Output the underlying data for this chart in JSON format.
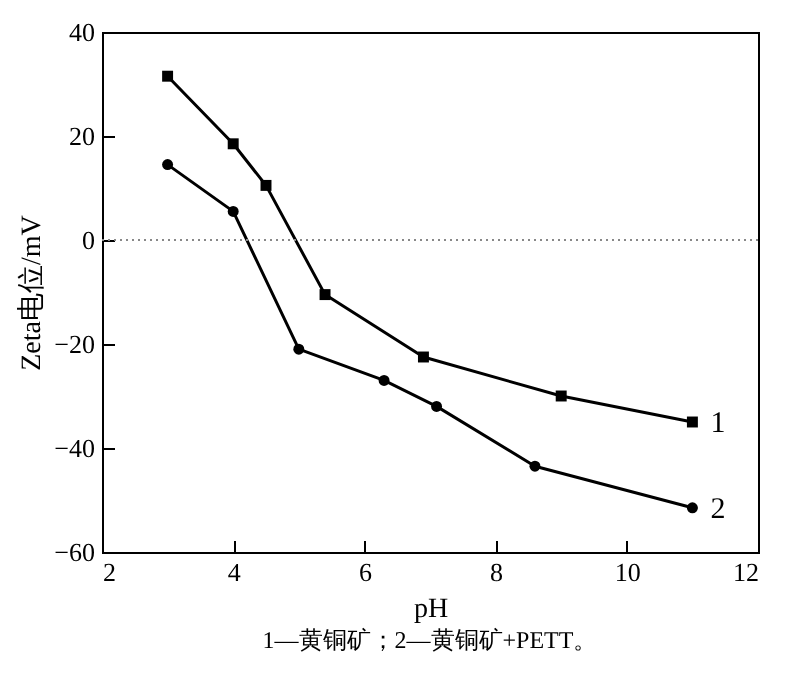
{
  "chart_data": {
    "type": "line",
    "xlabel": "pH",
    "ylabel": "Zeta电位/mV",
    "annotations": [
      "1—黄铜矿；2—黄铜矿+PETT。"
    ],
    "xlim": [
      2,
      12
    ],
    "xticks": [
      2,
      4,
      6,
      8,
      10,
      12
    ],
    "ylim": [
      -60,
      40
    ],
    "yticks": [
      -60,
      -40,
      -20,
      0,
      20,
      40
    ],
    "grid": false,
    "ref_lines": [
      {
        "axis": "y",
        "value": 0,
        "color": "#888888",
        "line_style": "dotted"
      }
    ],
    "series": [
      {
        "name": "1",
        "color": "#000000",
        "marker": "square",
        "x": [
          3,
          4,
          4.5,
          5.4,
          6.9,
          9,
          11
        ],
        "values": [
          31.5,
          18.5,
          10.5,
          -10.5,
          -22.5,
          -30,
          -35
        ]
      },
      {
        "name": "2",
        "color": "#000000",
        "marker": "circle",
        "x": [
          3,
          4,
          5,
          6.3,
          7.1,
          8.6,
          11
        ],
        "values": [
          14.5,
          5.5,
          -21,
          -27,
          -32,
          -43.5,
          -51.5
        ]
      }
    ]
  }
}
